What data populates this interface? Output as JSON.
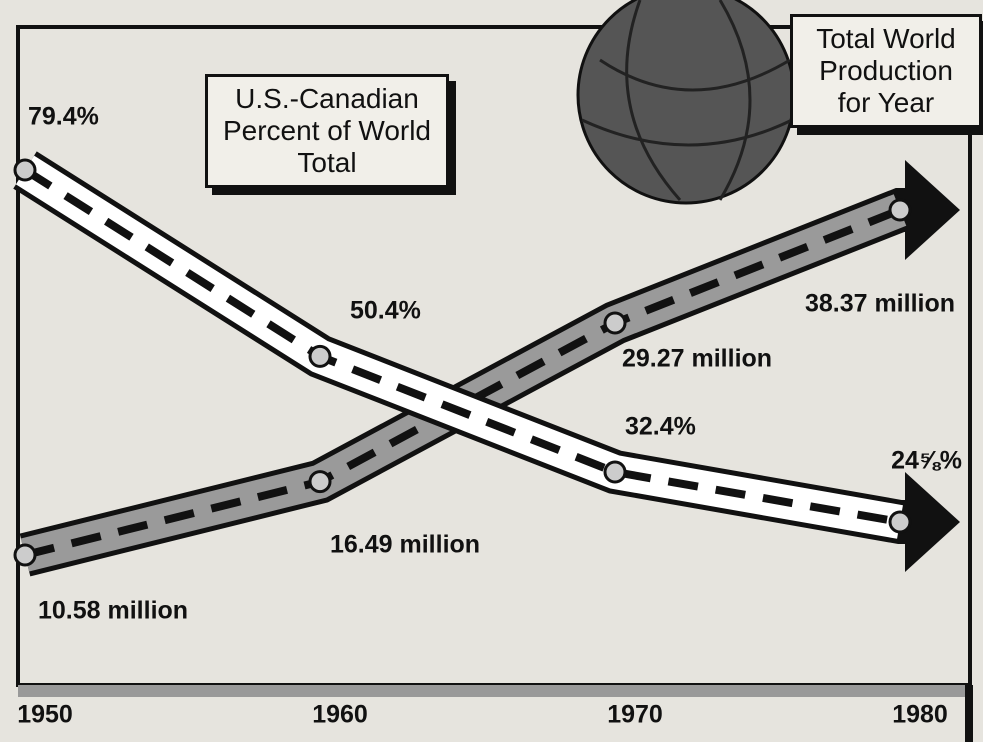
{
  "chart_data": {
    "type": "line",
    "categories": [
      "1950",
      "1960",
      "1970",
      "1980"
    ],
    "series": [
      {
        "name": "U.S.-Canadian Percent of World Total",
        "color": "#ffffff",
        "values": [
          79.4,
          50.4,
          32.4,
          24.625
        ],
        "value_labels": [
          "79.4%",
          "50.4%",
          "32.4%",
          "24⅝%"
        ]
      },
      {
        "name": "Total World Production for Year",
        "color": "#9a9a9a",
        "values": [
          10.58,
          16.49,
          29.27,
          38.37
        ],
        "value_labels": [
          "10.58 million",
          "16.49 million",
          "29.27 million",
          "38.37 million"
        ]
      }
    ]
  }
}
